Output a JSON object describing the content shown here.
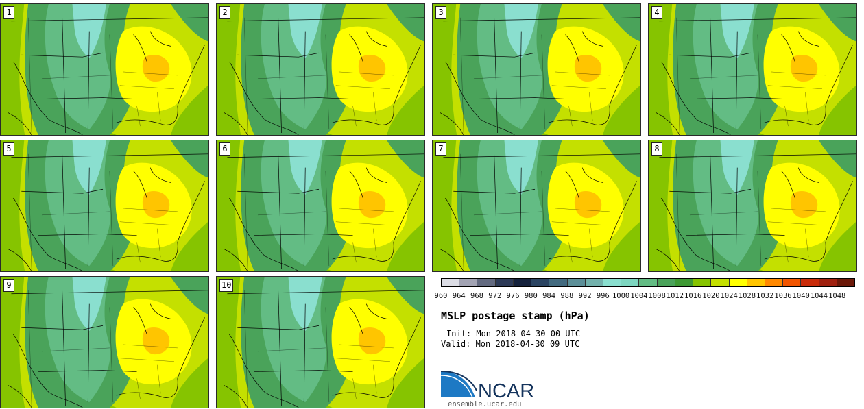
{
  "page": {
    "title": "MSLP postage stamp (hPa)",
    "init": "Init: Mon 2018-04-30 00 UTC",
    "valid": "Valid: Mon 2018-04-30 09 UTC"
  },
  "panels": [
    {
      "label": "1"
    },
    {
      "label": "2"
    },
    {
      "label": "3"
    },
    {
      "label": "4"
    },
    {
      "label": "5"
    },
    {
      "label": "6"
    },
    {
      "label": "7"
    },
    {
      "label": "8"
    },
    {
      "label": "9"
    },
    {
      "label": "10"
    }
  ],
  "colorbar": {
    "labels": [
      "960",
      "964",
      "968",
      "972",
      "976",
      "980",
      "984",
      "988",
      "992",
      "996",
      "1000",
      "1004",
      "1008",
      "1012",
      "1016",
      "1020",
      "1024",
      "1028",
      "1032",
      "1036",
      "1040",
      "1044",
      "1048"
    ],
    "colors": [
      "#dcdde5",
      "#a2a3b3",
      "#636a80",
      "#2d3a57",
      "#15223c",
      "#2b4462",
      "#426a7f",
      "#5c8f98",
      "#73b1ac",
      "#8adfcf",
      "#7dd6c0",
      "#63bc84",
      "#4aa35a",
      "#3d9933",
      "#86c400",
      "#c4e000",
      "#ffff00",
      "#ffc500",
      "#ff8800",
      "#f25500",
      "#c92b0a",
      "#a0210f",
      "#6b1808"
    ]
  },
  "branding": {
    "logo_text": "NCAR",
    "url": "ensemble.ucar.edu",
    "colors": {
      "blue": "#1d79c4",
      "navy": "#14335c"
    }
  }
}
